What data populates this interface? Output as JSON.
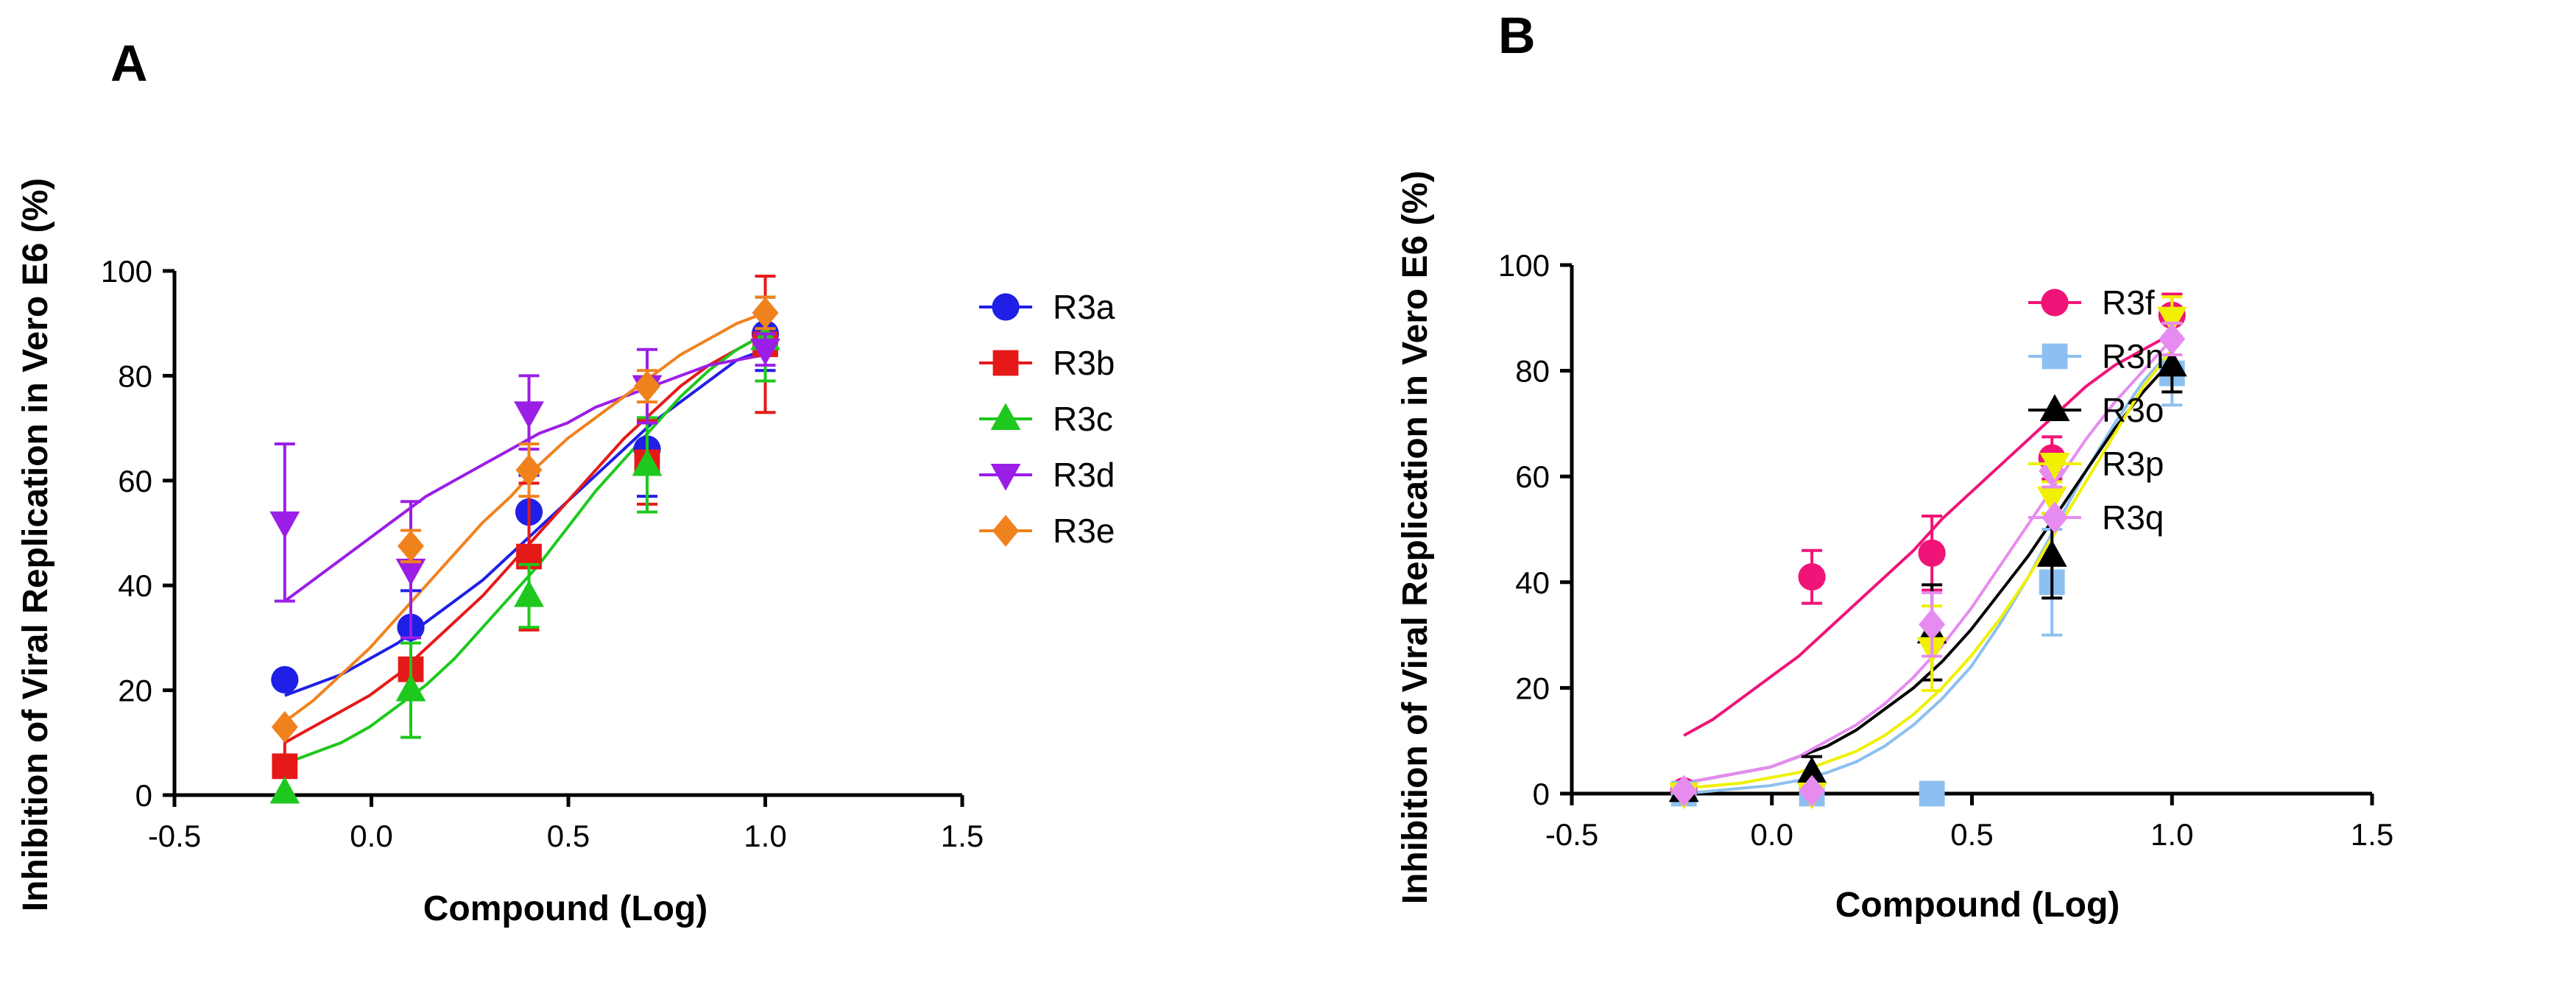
{
  "chart_data": [
    {
      "panel": "A",
      "type": "scatter",
      "xlabel": "Compound (Log)",
      "ylabel": "Inhibition of Viral Replication in Vero E6 (%)",
      "xlim": [
        -0.5,
        1.5
      ],
      "ylim": [
        0,
        100
      ],
      "xticks": [
        "-0.5",
        "0.0",
        "0.5",
        "1.0",
        "1.5"
      ],
      "yticks": [
        "0",
        "20",
        "40",
        "60",
        "80",
        "100"
      ],
      "series": [
        {
          "name": "R3a",
          "color": "#1f1fe6",
          "marker": "circle",
          "x": [
            -0.22,
            0.1,
            0.4,
            0.7,
            1.0
          ],
          "y": [
            22,
            32,
            54,
            66,
            88
          ],
          "err": [
            0,
            7,
            7,
            9,
            7
          ],
          "curve": [
            19,
            21,
            23,
            26,
            29,
            33,
            37,
            41,
            46,
            51,
            56,
            61,
            66,
            71,
            75,
            79,
            83,
            85
          ]
        },
        {
          "name": "R3b",
          "color": "#e61919",
          "marker": "square",
          "x": [
            -0.22,
            0.1,
            0.4,
            0.7,
            1.0
          ],
          "y": [
            5.5,
            24,
            45.5,
            63.5,
            86
          ],
          "err": [
            7,
            5,
            14,
            8,
            13
          ],
          "curve": [
            10,
            13,
            16,
            19,
            23,
            28,
            33,
            38,
            44,
            50,
            56,
            62,
            68,
            73,
            78,
            82,
            85,
            88
          ]
        },
        {
          "name": "R3c",
          "color": "#1ec81e",
          "marker": "triangle",
          "x": [
            -0.22,
            0.1,
            0.4,
            0.7,
            1.0
          ],
          "y": [
            0.5,
            20,
            38,
            63,
            87
          ],
          "err": [
            0,
            9,
            6,
            9,
            8
          ],
          "curve": [
            6,
            8,
            10,
            13,
            17,
            21,
            26,
            32,
            38,
            44,
            51,
            58,
            64,
            70,
            76,
            81,
            85,
            88
          ]
        },
        {
          "name": "R3d",
          "color": "#9b1ee6",
          "marker": "triangle-down",
          "x": [
            -0.22,
            0.1,
            0.4,
            0.7,
            1.0
          ],
          "y": [
            52,
            43,
            73,
            78,
            85
          ],
          "err": [
            15,
            13,
            7,
            7,
            3
          ],
          "curve": [
            37,
            41,
            45,
            49,
            53,
            57,
            60,
            63,
            66,
            69,
            71,
            74,
            76,
            78,
            80,
            82,
            83,
            84
          ]
        },
        {
          "name": "R3e",
          "color": "#f0821e",
          "marker": "diamond",
          "x": [
            -0.22,
            0.1,
            0.4,
            0.7,
            1.0
          ],
          "y": [
            13,
            47.5,
            62,
            78,
            92
          ],
          "err": [
            0,
            3,
            5,
            3,
            3
          ],
          "curve": [
            14,
            18,
            23,
            28,
            34,
            40,
            46,
            52,
            57,
            63,
            68,
            72,
            76,
            80,
            84,
            87,
            90,
            92
          ]
        }
      ]
    },
    {
      "panel": "B",
      "type": "scatter",
      "xlabel": "Compound (Log)",
      "ylabel": "Inhibition of Viral Replication in Vero E6 (%)",
      "xlim": [
        -0.5,
        1.5
      ],
      "ylim": [
        0,
        100
      ],
      "xticks": [
        "-0.5",
        "0.0",
        "0.5",
        "1.0",
        "1.5"
      ],
      "yticks": [
        "0",
        "20",
        "40",
        "60",
        "80",
        "100"
      ],
      "series": [
        {
          "name": "R3f",
          "color": "#f01478",
          "marker": "circle",
          "x": [
            -0.22,
            0.1,
            0.4,
            0.7,
            1.0
          ],
          "y": [
            0.5,
            41,
            45.5,
            63.5,
            90.5
          ],
          "err": [
            0,
            5,
            7,
            4,
            4
          ],
          "curve": [
            11,
            14,
            18,
            22,
            26,
            31,
            36,
            41,
            46,
            52,
            57,
            62,
            67,
            72,
            77,
            81,
            84,
            87
          ]
        },
        {
          "name": "R3n",
          "color": "#8cc0f0",
          "marker": "square",
          "x": [
            -0.22,
            0.1,
            0.4,
            0.7,
            1.0
          ],
          "y": [
            0,
            0,
            0,
            40,
            79.5
          ],
          "err": [
            0,
            0,
            0,
            10,
            6
          ],
          "curve": [
            0,
            0.5,
            1,
            1.5,
            2.5,
            4,
            6,
            9,
            13,
            18,
            24,
            32,
            41,
            51,
            61,
            70,
            78,
            84
          ]
        },
        {
          "name": "R3o",
          "color": "#000000",
          "marker": "triangle",
          "x": [
            -0.22,
            0.1,
            0.4,
            0.7,
            1.0
          ],
          "y": [
            0.5,
            4,
            30.5,
            45,
            81
          ],
          "err": [
            0,
            3,
            9,
            8,
            5
          ],
          "curve": [
            2,
            3,
            4,
            5,
            7,
            9,
            12,
            16,
            20,
            25,
            31,
            38,
            45,
            53,
            61,
            69,
            76,
            82
          ]
        },
        {
          "name": "R3p",
          "color": "#f0f000",
          "marker": "triangle-down",
          "x": [
            -0.22,
            0.1,
            0.4,
            0.7,
            1.0
          ],
          "y": [
            0,
            0,
            27.5,
            56,
            90
          ],
          "err": [
            0,
            0,
            8,
            3,
            4
          ],
          "curve": [
            1,
            1.5,
            2,
            3,
            4,
            6,
            8,
            11,
            15,
            20,
            26,
            33,
            41,
            50,
            59,
            68,
            77,
            84
          ]
        },
        {
          "name": "R3q",
          "color": "#e68cf0",
          "marker": "diamond",
          "x": [
            -0.22,
            0.1,
            0.4,
            0.7,
            1.0
          ],
          "y": [
            0.5,
            0.5,
            32,
            61,
            86
          ],
          "err": [
            0,
            0,
            6,
            3,
            3
          ],
          "curve": [
            2,
            3,
            4,
            5,
            7,
            10,
            13,
            17,
            22,
            28,
            35,
            43,
            51,
            59,
            67,
            74,
            80,
            86
          ]
        }
      ]
    }
  ]
}
